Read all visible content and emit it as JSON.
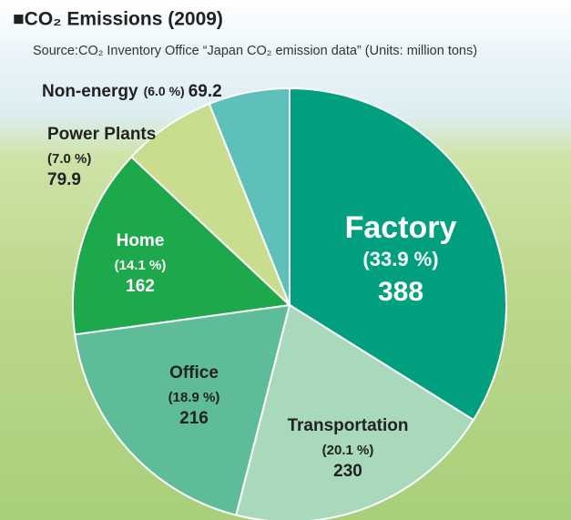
{
  "chart_data": {
    "type": "pie",
    "title": "■CO₂ Emissions (2009)",
    "subtitle": "Source:CO₂ Inventory Office “Japan CO₂ emission data” (Units: million tons)",
    "categories": [
      "Factory",
      "Transportation",
      "Office",
      "Home",
      "Power Plants",
      "Non-energy"
    ],
    "values": [
      388,
      230,
      216,
      162,
      79.9,
      69.2
    ],
    "percent_labels": [
      "(33.9 %)",
      "(20.1 %)",
      "(18.9 %)",
      "(14.1 %)",
      "(7.0 %)",
      "(6.0 %)"
    ],
    "colors": [
      "#00a07e",
      "#a9d9bb",
      "#5fbc98",
      "#1ca84b",
      "#c8dd8e",
      "#5dc0b9"
    ]
  }
}
